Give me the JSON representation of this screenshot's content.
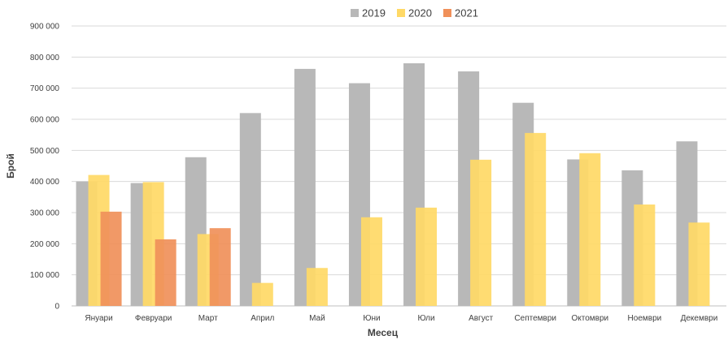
{
  "chart_data": {
    "type": "bar",
    "title": "",
    "xlabel": "Месец",
    "ylabel": "Брой",
    "ylim": [
      0,
      900000
    ],
    "yticks": [
      0,
      100000,
      200000,
      300000,
      400000,
      500000,
      600000,
      700000,
      800000,
      900000
    ],
    "ytick_labels": [
      "0",
      "100 000",
      "200 000",
      "300 000",
      "400 000",
      "500 000",
      "600 000",
      "700 000",
      "800 000",
      "900 000"
    ],
    "grid": true,
    "legend_position": "top",
    "categories": [
      "Януари",
      "Февруари",
      "Март",
      "Април",
      "Май",
      "Юни",
      "Юли",
      "Август",
      "Септември",
      "Октомври",
      "Ноември",
      "Декември"
    ],
    "series": [
      {
        "name": "2019",
        "color": "#b8b8b8",
        "values": [
          400000,
          395000,
          478000,
          620000,
          762000,
          716000,
          780000,
          754000,
          653000,
          471000,
          436000,
          529000
        ]
      },
      {
        "name": "2020",
        "color": "#ffd966",
        "values": [
          421000,
          398000,
          231000,
          74000,
          122000,
          285000,
          316000,
          470000,
          556000,
          491000,
          326000,
          268000
        ]
      },
      {
        "name": "2021",
        "color": "#f0905a",
        "values": [
          303000,
          214000,
          250000,
          null,
          null,
          null,
          null,
          null,
          null,
          null,
          null,
          null
        ]
      }
    ]
  }
}
